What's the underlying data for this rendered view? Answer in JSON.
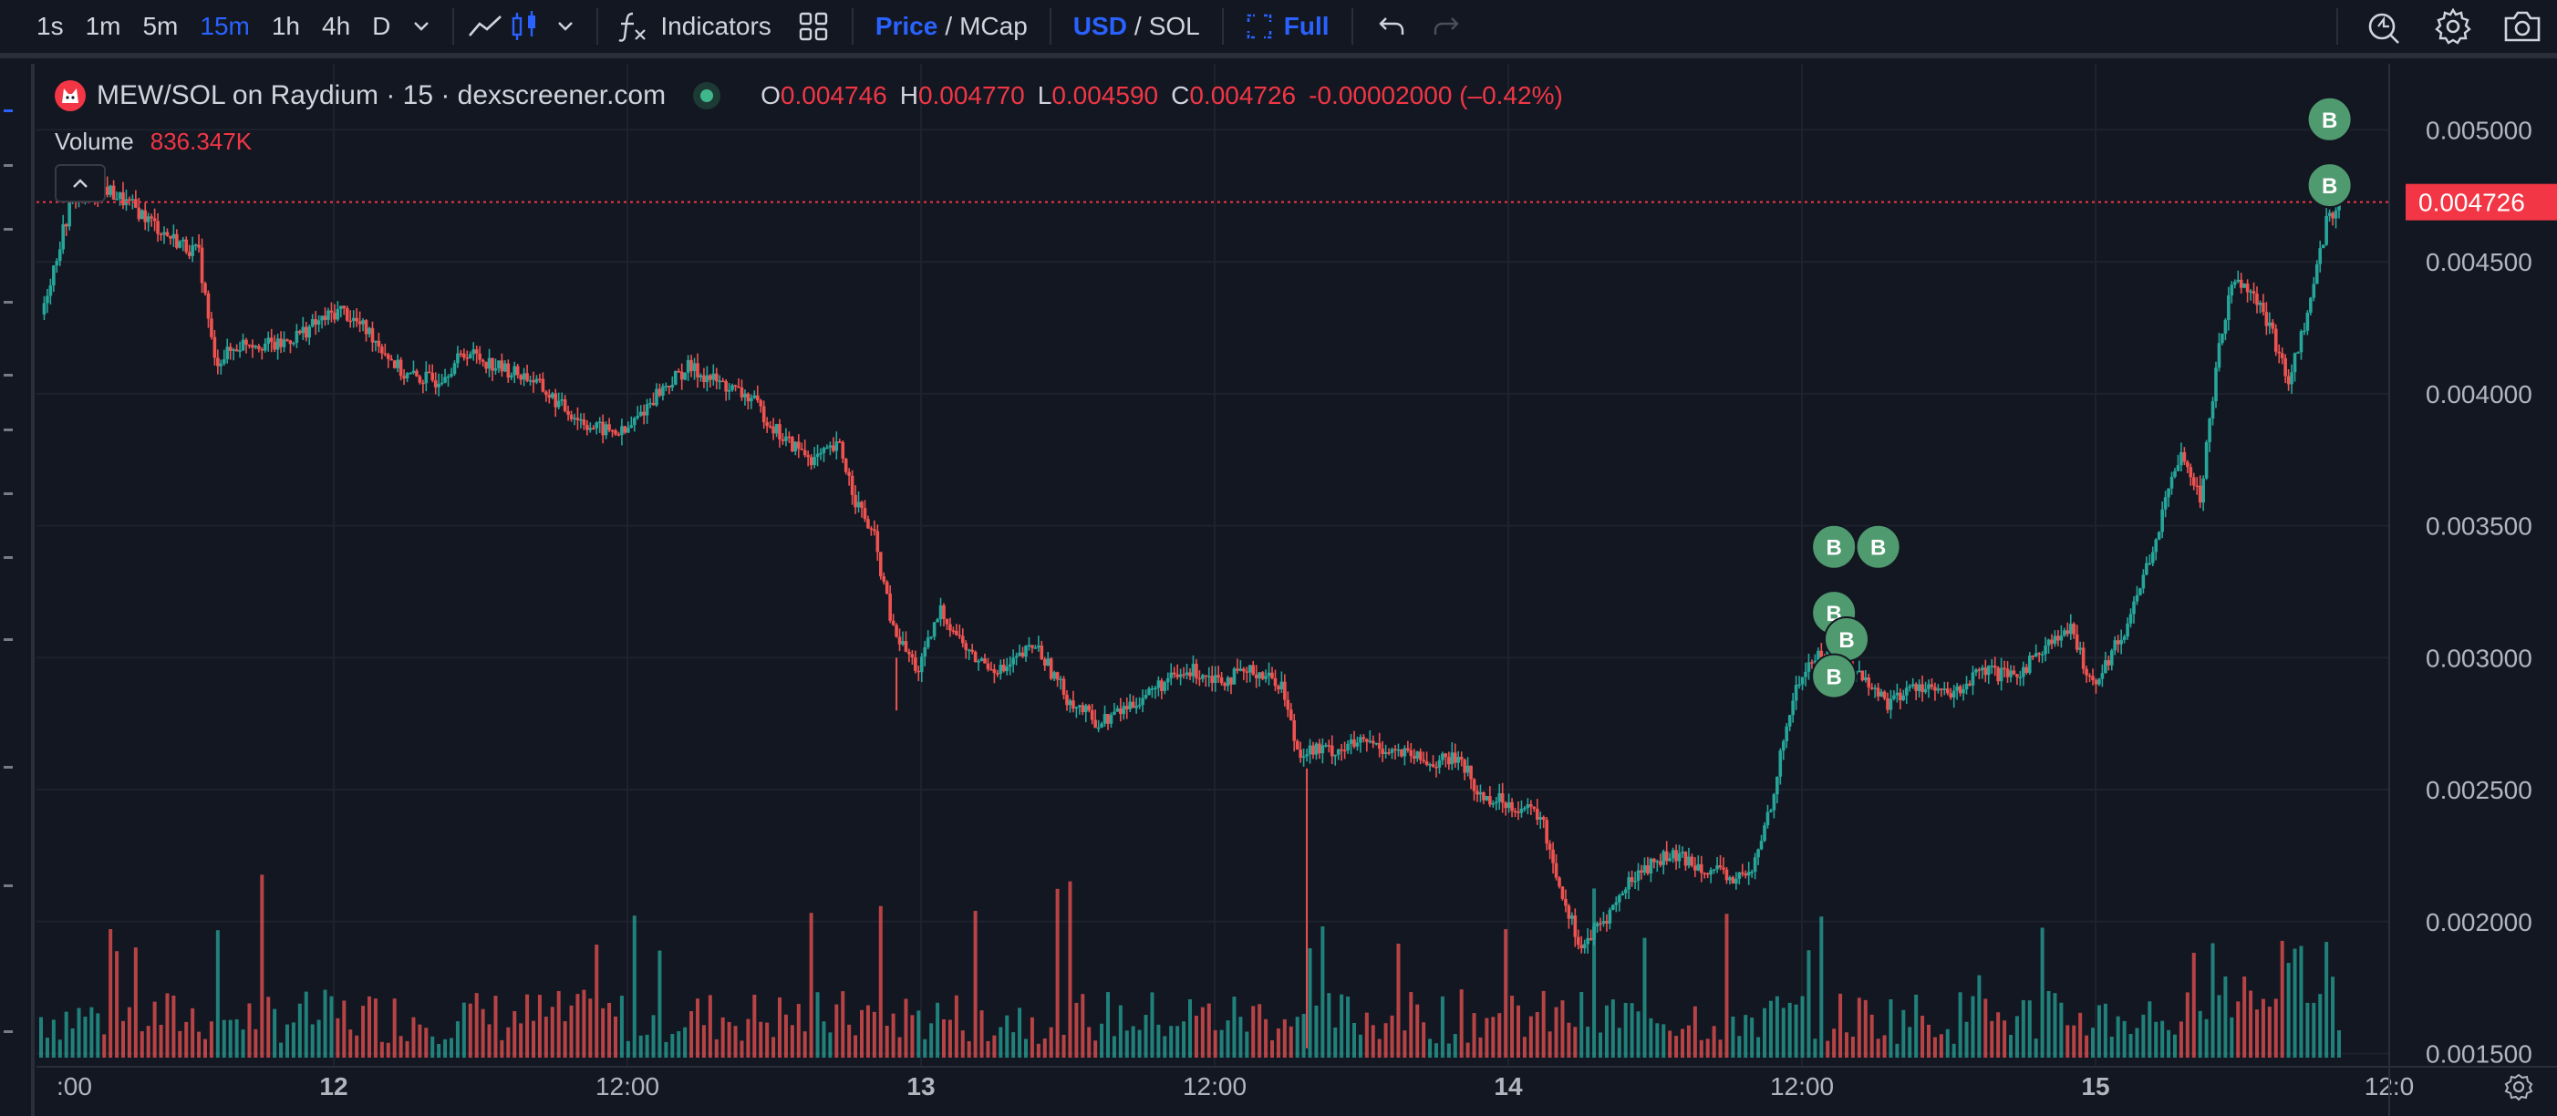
{
  "toolbar": {
    "intervals": [
      "1s",
      "1m",
      "5m",
      "15m",
      "1h",
      "4h",
      "D"
    ],
    "active_interval": "15m",
    "indicators_label": "Indicators",
    "price_label": "Price",
    "slash": "/",
    "mcap_label": "MCap",
    "usd_label": "USD",
    "sol_label": "SOL",
    "full_label": "Full"
  },
  "legend": {
    "symbol": "MEW/SOL on Raydium · 15 · dexscreener.com",
    "open_label": "O",
    "open": "0.004746",
    "high_label": "H",
    "high": "0.004770",
    "low_label": "L",
    "low": "0.004590",
    "close_label": "C",
    "close": "0.004726",
    "change": "-0.00002000 (–0.42%)",
    "volume_label": "Volume",
    "volume": "836.347K"
  },
  "colors": {
    "background": "#131722",
    "up": "#26a69a",
    "down": "#ef5350",
    "grid": "#1e222d",
    "axis_text": "#b2b5be",
    "last_price_bg": "#f23645",
    "buy_marker": "#4f9a6e"
  },
  "chart_data": {
    "type": "candlestick",
    "symbol": "MEW/SOL",
    "interval": "15",
    "x_ticks": [
      ":00",
      "12",
      "12:00",
      "13",
      "12:00",
      "14",
      "12:00",
      "15",
      "12:0"
    ],
    "y_ticks": [
      "0.005000",
      "0.004500",
      "0.004000",
      "0.003500",
      "0.003000",
      "0.002500",
      "0.002000",
      "0.001500"
    ],
    "y_tick_values": [
      0.005,
      0.0045,
      0.004,
      0.0035,
      0.003,
      0.0025,
      0.002,
      0.0015
    ],
    "ylim": [
      0.00145,
      0.00525
    ],
    "last_price": 0.004726,
    "last_price_label": "0.004726",
    "price_path": [
      [
        0,
        0.0043
      ],
      [
        10,
        0.00475
      ],
      [
        20,
        0.00478
      ],
      [
        30,
        0.0047
      ],
      [
        40,
        0.0046
      ],
      [
        50,
        0.00453
      ],
      [
        55,
        0.00412
      ],
      [
        65,
        0.0042
      ],
      [
        75,
        0.00418
      ],
      [
        85,
        0.00425
      ],
      [
        95,
        0.00432
      ],
      [
        105,
        0.00422
      ],
      [
        115,
        0.00407
      ],
      [
        125,
        0.00405
      ],
      [
        135,
        0.00416
      ],
      [
        145,
        0.0041
      ],
      [
        155,
        0.00406
      ],
      [
        165,
        0.00395
      ],
      [
        175,
        0.00387
      ],
      [
        185,
        0.00385
      ],
      [
        195,
        0.004
      ],
      [
        205,
        0.0041
      ],
      [
        215,
        0.00404
      ],
      [
        225,
        0.00398
      ],
      [
        235,
        0.00383
      ],
      [
        245,
        0.00375
      ],
      [
        253,
        0.0038
      ],
      [
        258,
        0.0036
      ],
      [
        264,
        0.00345
      ],
      [
        270,
        0.0031
      ],
      [
        278,
        0.00295
      ],
      [
        285,
        0.00318
      ],
      [
        295,
        0.003
      ],
      [
        305,
        0.00295
      ],
      [
        315,
        0.00305
      ],
      [
        325,
        0.00285
      ],
      [
        335,
        0.00275
      ],
      [
        345,
        0.00282
      ],
      [
        355,
        0.0029
      ],
      [
        365,
        0.00295
      ],
      [
        375,
        0.00292
      ],
      [
        385,
        0.00295
      ],
      [
        393,
        0.0029
      ],
      [
        398,
        0.00265
      ],
      [
        410,
        0.00265
      ],
      [
        420,
        0.00268
      ],
      [
        430,
        0.00264
      ],
      [
        440,
        0.0026
      ],
      [
        450,
        0.00262
      ],
      [
        455,
        0.00248
      ],
      [
        465,
        0.00245
      ],
      [
        475,
        0.0024
      ],
      [
        482,
        0.0021
      ],
      [
        488,
        0.0019
      ],
      [
        495,
        0.002
      ],
      [
        505,
        0.00218
      ],
      [
        515,
        0.00225
      ],
      [
        525,
        0.00222
      ],
      [
        535,
        0.00216
      ],
      [
        542,
        0.00218
      ],
      [
        548,
        0.00245
      ],
      [
        555,
        0.00285
      ],
      [
        560,
        0.00298
      ],
      [
        565,
        0.00302
      ],
      [
        575,
        0.00295
      ],
      [
        585,
        0.00283
      ],
      [
        595,
        0.0029
      ],
      [
        605,
        0.00285
      ],
      [
        615,
        0.00295
      ],
      [
        625,
        0.00292
      ],
      [
        635,
        0.00305
      ],
      [
        643,
        0.0031
      ],
      [
        650,
        0.0029
      ],
      [
        660,
        0.0031
      ],
      [
        670,
        0.00345
      ],
      [
        678,
        0.0038
      ],
      [
        684,
        0.0036
      ],
      [
        690,
        0.0042
      ],
      [
        695,
        0.00445
      ],
      [
        700,
        0.0044
      ],
      [
        706,
        0.00425
      ],
      [
        712,
        0.00405
      ],
      [
        718,
        0.0043
      ],
      [
        724,
        0.00465
      ],
      [
        728,
        0.00473
      ]
    ],
    "volume_scale_note": "relative",
    "volume": [
      [
        0.2,
        0.4,
        0.3,
        0.5,
        0.6,
        0.3,
        0.7,
        0.3,
        0.2,
        0.3
      ],
      [
        0.2,
        0.25,
        0.3,
        0.2,
        0.3,
        0.2,
        0.25,
        0.2,
        0.3,
        0.25
      ],
      [
        0.2,
        0.2,
        0.3,
        0.2,
        0.25,
        0.2,
        0.2,
        0.6,
        0.2,
        0.25
      ],
      [
        0.2,
        0.2,
        0.3,
        0.25,
        0.2,
        0.2,
        0.3,
        0.2,
        0.2,
        0.25
      ],
      [
        0.2,
        0.3,
        0.2,
        0.2,
        0.25,
        0.2,
        0.2,
        0.3,
        0.2,
        0.2
      ]
    ],
    "buy_markers": [
      {
        "label": "B",
        "x": 568,
        "price": 0.00342
      },
      {
        "label": "B",
        "x": 582,
        "price": 0.00342
      },
      {
        "label": "B",
        "x": 568,
        "price": 0.00317
      },
      {
        "label": "B",
        "x": 572,
        "price": 0.00307
      },
      {
        "label": "B",
        "x": 568,
        "price": 0.00293
      },
      {
        "label": "B",
        "x": 725,
        "price": 0.00504
      },
      {
        "label": "B",
        "x": 725,
        "price": 0.00479
      }
    ]
  }
}
